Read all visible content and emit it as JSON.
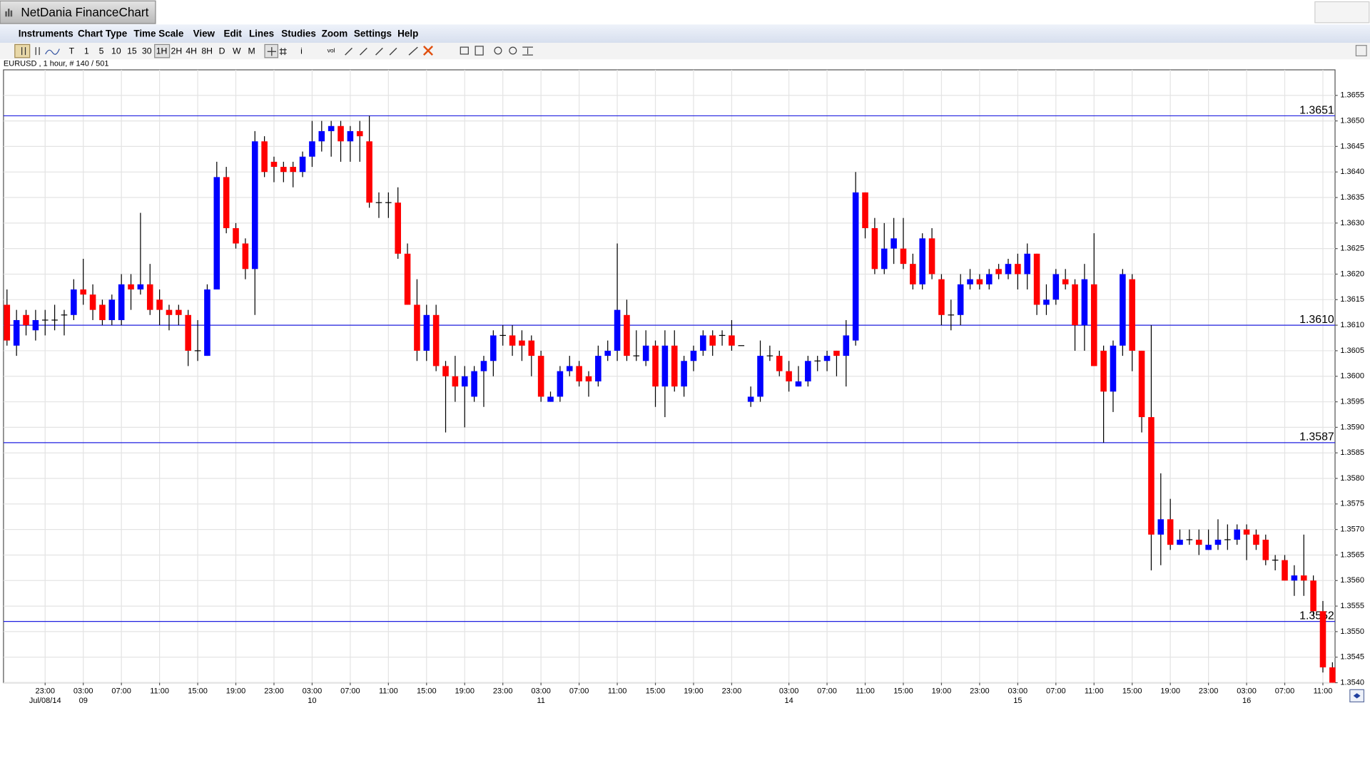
{
  "window": {
    "title": "NetDania FinanceChart"
  },
  "menu": [
    "Instruments",
    "Chart Type",
    "Time Scale",
    "View",
    "Edit",
    "Lines",
    "Studies",
    "Zoom",
    "Settings",
    "Help"
  ],
  "toolbar": [
    "T",
    "1",
    "5",
    "10",
    "15",
    "30",
    "1H",
    "2H",
    "4H",
    "8H",
    "D",
    "W",
    "M",
    "i",
    "vol"
  ],
  "chart_data": {
    "type": "candlestick",
    "info": "EURUSD , 1 hour, # 140 / 501",
    "categories": [
      null,
      null,
      null,
      null,
      "23:00",
      null,
      null,
      null,
      "03:00",
      null,
      null,
      null,
      "07:00",
      null,
      null,
      null,
      "11:00",
      null,
      null,
      null,
      "15:00",
      null,
      null,
      null,
      "19:00",
      null,
      null,
      null,
      "23:00",
      null,
      null,
      null,
      "03:00",
      null,
      null,
      null,
      "07:00",
      null,
      null,
      null,
      "11:00",
      null,
      null,
      null,
      "15:00",
      null,
      null,
      null,
      "19:00",
      null,
      null,
      null,
      "23:00",
      null,
      null,
      null,
      "03:00",
      null,
      null,
      null,
      "07:00",
      null,
      null,
      null,
      "11:00",
      null,
      null,
      null,
      "15:00",
      null,
      null,
      null,
      "19:00",
      null,
      null,
      null,
      "23:00",
      null,
      null,
      null,
      null,
      null,
      "03:00",
      null,
      null,
      null,
      "07:00",
      null,
      null,
      null,
      "11:00",
      null,
      null,
      null,
      "15:00",
      null,
      null,
      null,
      "19:00",
      null,
      null,
      null,
      "23:00",
      null,
      null,
      null,
      "03:00",
      null,
      null,
      null,
      "07:00",
      null,
      null,
      null,
      "11:00",
      null,
      null,
      null,
      "15:00",
      null,
      null,
      null,
      "19:00",
      null,
      null,
      null,
      "23:00",
      null,
      null,
      null,
      "03:00",
      null,
      null,
      null,
      "07:00",
      null,
      null,
      null,
      "11:00",
      null
    ],
    "date_labels": [
      null,
      null,
      null,
      null,
      "Jul/08/14",
      null,
      null,
      null,
      "09",
      null,
      null,
      null,
      null,
      null,
      null,
      null,
      null,
      null,
      null,
      null,
      null,
      null,
      null,
      null,
      null,
      null,
      null,
      null,
      null,
      null,
      null,
      null,
      "10",
      null,
      null,
      null,
      null,
      null,
      null,
      null,
      null,
      null,
      null,
      null,
      null,
      null,
      null,
      null,
      null,
      null,
      null,
      null,
      null,
      null,
      null,
      null,
      "11",
      null,
      null,
      null,
      null,
      null,
      null,
      null,
      null,
      null,
      null,
      null,
      null,
      null,
      null,
      null,
      null,
      null,
      null,
      null,
      null,
      null,
      null,
      null,
      null,
      null,
      "14",
      null,
      null,
      null,
      null,
      null,
      null,
      null,
      null,
      null,
      null,
      null,
      null,
      null,
      null,
      null,
      null,
      null,
      null,
      null,
      null,
      null,
      null,
      null,
      "15",
      null,
      null,
      null,
      null,
      null,
      null,
      null,
      null,
      null,
      null,
      null,
      null,
      null,
      null,
      null,
      null,
      null,
      null,
      null,
      null,
      null,
      null,
      null,
      "16",
      null,
      null,
      null,
      null,
      null,
      null,
      null,
      null,
      null
    ],
    "open": [
      1.3614,
      1.3606,
      1.3612,
      1.3609,
      1.3611,
      1.3611,
      1.3612,
      1.3612,
      1.3617,
      1.3616,
      1.3614,
      1.3611,
      1.3611,
      1.3618,
      1.3617,
      1.3618,
      1.3615,
      1.3613,
      1.3613,
      1.3612,
      1.3605,
      1.3604,
      1.3617,
      1.3639,
      1.3629,
      1.3626,
      1.3621,
      1.3646,
      1.3642,
      1.3641,
      1.3641,
      1.364,
      1.3643,
      1.3646,
      1.3648,
      1.3649,
      1.3646,
      1.3648,
      1.3646,
      1.3634,
      1.3634,
      1.3634,
      1.3624,
      1.3614,
      1.3605,
      1.3612,
      1.3602,
      1.36,
      1.3598,
      1.3596,
      1.3601,
      1.3603,
      1.3608,
      1.3608,
      1.3607,
      1.3607,
      1.3604,
      1.3595,
      1.3596,
      1.3601,
      1.3602,
      1.36,
      1.3599,
      1.3604,
      1.3605,
      1.3612,
      1.3604,
      1.3603,
      1.3606,
      1.3598,
      1.3606,
      1.3598,
      1.3603,
      1.3605,
      1.3608,
      1.3608,
      1.3608,
      1.3606,
      1.3595,
      1.3596,
      1.3604,
      1.3604,
      1.3601,
      1.3598,
      1.3599,
      1.3603,
      1.3603,
      1.3605,
      1.3604,
      1.3607,
      1.3636,
      1.3629,
      1.3621,
      1.3625,
      1.3625,
      1.3622,
      1.3618,
      1.3627,
      1.3619,
      1.3612,
      1.3612,
      1.3618,
      1.3619,
      1.3618,
      1.3621,
      1.362,
      1.3622,
      1.362,
      1.3624,
      1.3614,
      1.3615,
      1.3619,
      1.3618,
      1.361,
      1.3618,
      1.3605,
      1.3597,
      1.3606,
      1.3619,
      1.3605,
      1.3592,
      1.3569,
      1.3572,
      1.3567,
      1.3568,
      1.3568,
      1.3566,
      1.3567,
      1.3568,
      1.3568,
      1.357,
      1.3569,
      1.3568,
      1.3564,
      1.3564,
      1.356,
      1.3561,
      1.356,
      1.3554,
      1.3543
    ],
    "high": [
      1.3617,
      1.3613,
      1.3613,
      1.3613,
      1.3613,
      1.3614,
      1.3613,
      1.3619,
      1.3623,
      1.3618,
      1.3615,
      1.3616,
      1.362,
      1.362,
      1.3632,
      1.3622,
      1.3617,
      1.3614,
      1.3614,
      1.3613,
      1.3611,
      1.3618,
      1.3642,
      1.3641,
      1.363,
      1.3627,
      1.3648,
      1.3647,
      1.3643,
      1.3642,
      1.3642,
      1.3644,
      1.365,
      1.365,
      1.365,
      1.365,
      1.3649,
      1.365,
      1.3651,
      1.3636,
      1.3636,
      1.3637,
      1.3626,
      1.3619,
      1.3614,
      1.3614,
      1.3603,
      1.3604,
      1.3602,
      1.3602,
      1.3604,
      1.3609,
      1.361,
      1.361,
      1.3609,
      1.3608,
      1.3605,
      1.3597,
      1.3602,
      1.3604,
      1.3603,
      1.3601,
      1.3606,
      1.3607,
      1.3626,
      1.3615,
      1.3609,
      1.3609,
      1.3607,
      1.3609,
      1.3609,
      1.3604,
      1.3606,
      1.3609,
      1.3609,
      1.3609,
      1.3611,
      1.3606,
      1.3598,
      1.3607,
      1.3606,
      1.3605,
      1.3603,
      1.3602,
      1.3604,
      1.3604,
      1.3605,
      1.3605,
      1.3611,
      1.364,
      1.3636,
      1.3631,
      1.363,
      1.3631,
      1.3631,
      1.3624,
      1.3628,
      1.3629,
      1.362,
      1.3615,
      1.362,
      1.3621,
      1.362,
      1.3621,
      1.3622,
      1.3623,
      1.3624,
      1.3626,
      1.3624,
      1.3618,
      1.3621,
      1.3621,
      1.3619,
      1.3622,
      1.3628,
      1.3606,
      1.3607,
      1.3621,
      1.362,
      1.3605,
      1.361,
      1.3581,
      1.3576,
      1.357,
      1.357,
      1.357,
      1.357,
      1.3572,
      1.3571,
      1.3571,
      1.3571,
      1.357,
      1.3569,
      1.3565,
      1.3565,
      1.3563,
      1.3569,
      1.3561,
      1.3556,
      1.3544
    ],
    "low": [
      1.3606,
      1.3604,
      1.3608,
      1.3607,
      1.3608,
      1.3609,
      1.3608,
      1.3611,
      1.3614,
      1.3611,
      1.361,
      1.361,
      1.361,
      1.3613,
      1.3616,
      1.3612,
      1.361,
      1.3609,
      1.361,
      1.3602,
      1.3603,
      1.3604,
      1.3617,
      1.3628,
      1.3625,
      1.3619,
      1.3612,
      1.3639,
      1.3638,
      1.3638,
      1.3637,
      1.3639,
      1.3641,
      1.3644,
      1.3643,
      1.3642,
      1.3642,
      1.3642,
      1.3633,
      1.3631,
      1.3631,
      1.3623,
      1.3614,
      1.3603,
      1.3603,
      1.3601,
      1.3589,
      1.3595,
      1.359,
      1.3595,
      1.3594,
      1.36,
      1.3606,
      1.3604,
      1.3603,
      1.36,
      1.3595,
      1.3595,
      1.3595,
      1.36,
      1.3598,
      1.3596,
      1.3598,
      1.3603,
      1.3603,
      1.3603,
      1.3603,
      1.3602,
      1.3594,
      1.3592,
      1.3597,
      1.3596,
      1.3601,
      1.3604,
      1.3604,
      1.3606,
      1.3605,
      1.3606,
      1.3594,
      1.3595,
      1.3603,
      1.36,
      1.3597,
      1.3598,
      1.3598,
      1.3601,
      1.3601,
      1.36,
      1.3598,
      1.3606,
      1.3627,
      1.362,
      1.362,
      1.3622,
      1.3621,
      1.3617,
      1.3617,
      1.3619,
      1.361,
      1.3609,
      1.361,
      1.3617,
      1.3617,
      1.3617,
      1.3619,
      1.3619,
      1.3617,
      1.3617,
      1.3612,
      1.3612,
      1.3614,
      1.3617,
      1.3605,
      1.3605,
      1.3602,
      1.3587,
      1.3593,
      1.3604,
      1.3601,
      1.3589,
      1.3562,
      1.3563,
      1.3566,
      1.3567,
      1.3567,
      1.3565,
      1.3566,
      1.3566,
      1.3566,
      1.3567,
      1.3564,
      1.3566,
      1.3563,
      1.3562,
      1.356,
      1.3557,
      1.3557,
      1.3553,
      1.3542,
      1.354
    ],
    "close": [
      1.3607,
      1.3611,
      1.361,
      1.3611,
      1.3611,
      1.3611,
      1.3612,
      1.3617,
      1.3616,
      1.3613,
      1.3611,
      1.3615,
      1.3618,
      1.3617,
      1.3618,
      1.3613,
      1.3613,
      1.3612,
      1.3612,
      1.3605,
      1.3605,
      1.3617,
      1.3639,
      1.3629,
      1.3626,
      1.3621,
      1.3646,
      1.364,
      1.3641,
      1.364,
      1.364,
      1.3643,
      1.3646,
      1.3648,
      1.3649,
      1.3646,
      1.3648,
      1.3647,
      1.3634,
      1.3634,
      1.3634,
      1.3624,
      1.3614,
      1.3605,
      1.3612,
      1.3602,
      1.36,
      1.3598,
      1.36,
      1.3601,
      1.3603,
      1.3608,
      1.3608,
      1.3606,
      1.3606,
      1.3604,
      1.3596,
      1.3596,
      1.3601,
      1.3602,
      1.3599,
      1.3599,
      1.3604,
      1.3605,
      1.3613,
      1.3604,
      1.3604,
      1.3606,
      1.3598,
      1.3606,
      1.3598,
      1.3603,
      1.3605,
      1.3608,
      1.3606,
      1.3608,
      1.3606,
      1.3606,
      1.3596,
      1.3604,
      1.3604,
      1.3601,
      1.3599,
      1.3599,
      1.3603,
      1.3603,
      1.3604,
      1.3604,
      1.3608,
      1.3636,
      1.3629,
      1.3621,
      1.3625,
      1.3627,
      1.3622,
      1.3618,
      1.3627,
      1.362,
      1.3612,
      1.3612,
      1.3618,
      1.3619,
      1.3618,
      1.362,
      1.362,
      1.3622,
      1.362,
      1.3624,
      1.3614,
      1.3615,
      1.362,
      1.3618,
      1.361,
      1.3619,
      1.3602,
      1.3597,
      1.3606,
      1.362,
      1.3605,
      1.3592,
      1.3569,
      1.3572,
      1.3567,
      1.3568,
      1.3568,
      1.3567,
      1.3567,
      1.3568,
      1.3568,
      1.357,
      1.3569,
      1.3567,
      1.3564,
      1.3564,
      1.356,
      1.3561,
      1.356,
      1.3554,
      1.3543,
      1.354
    ],
    "up_color": "#0000ff",
    "down_color": "#ff0000",
    "wick_color": "#000000",
    "ylim": [
      1.354,
      1.366
    ],
    "yticks": [
      {
        "value": 1.354,
        "label": "1.3540"
      },
      1.3545,
      {
        "value": 1.355,
        "label": "1.3550"
      },
      1.3555,
      {
        "value": 1.356,
        "label": "1.3560"
      },
      1.3565,
      {
        "value": 1.357,
        "label": "1.3570"
      },
      1.3575,
      {
        "value": 1.358,
        "label": "1.3580"
      },
      1.3585,
      {
        "value": 1.359,
        "label": "1.3590"
      },
      1.3595,
      {
        "value": 1.36,
        "label": "1.3600"
      },
      1.3605,
      {
        "value": 1.361,
        "label": "1.3610"
      },
      1.3615,
      {
        "value": 1.362,
        "label": "1.3620"
      },
      1.3625,
      {
        "value": 1.363,
        "label": "1.3630"
      },
      1.3635,
      {
        "value": 1.364,
        "label": "1.3640"
      },
      1.3645,
      {
        "value": 1.365,
        "label": "1.3650"
      },
      1.3655
    ],
    "grid": true,
    "lines": [
      1.3651,
      {
        "value": 1.361,
        "label": "1.3610"
      },
      1.3587,
      1.3552
    ],
    "line_color": "#2020e0"
  }
}
